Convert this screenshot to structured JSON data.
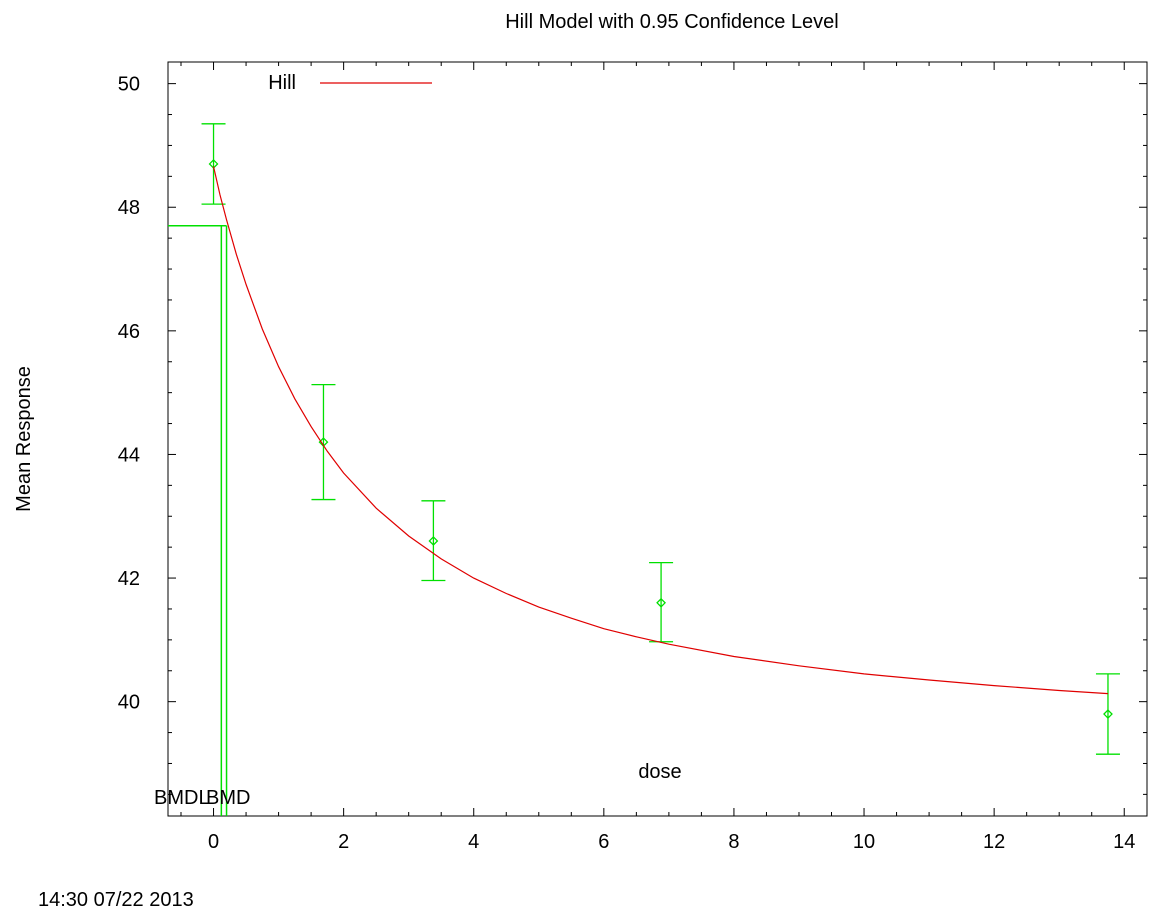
{
  "chart_data": {
    "type": "line",
    "title": "Hill Model with 0.95 Confidence Level",
    "xlabel": "dose",
    "ylabel": "Mean Response",
    "xlim": [
      -0.7,
      14.35
    ],
    "ylim": [
      38.15,
      50.35
    ],
    "x_ticks": [
      0,
      2,
      4,
      6,
      8,
      10,
      12,
      14
    ],
    "y_ticks": [
      40,
      42,
      44,
      46,
      48,
      50
    ],
    "grid": false,
    "legend": {
      "position": "top-left",
      "entries": [
        {
          "label": "Hill",
          "color": "#e00000"
        }
      ]
    },
    "series": [
      {
        "name": "Hill",
        "kind": "fitted-curve",
        "color": "#e00000",
        "x": [
          0,
          0.1,
          0.2,
          0.35,
          0.5,
          0.75,
          1.0,
          1.25,
          1.5,
          1.75,
          2.0,
          2.5,
          3.0,
          3.5,
          4.0,
          4.5,
          5.0,
          5.5,
          6.0,
          6.5,
          7.0,
          8.0,
          9.0,
          10.0,
          11.0,
          12.0,
          13.0,
          13.75
        ],
        "y": [
          48.66,
          48.2,
          47.8,
          47.24,
          46.75,
          46.03,
          45.42,
          44.9,
          44.45,
          44.05,
          43.7,
          43.13,
          42.68,
          42.31,
          42.0,
          41.75,
          41.53,
          41.35,
          41.18,
          41.05,
          40.93,
          40.73,
          40.58,
          40.45,
          40.35,
          40.26,
          40.18,
          40.13
        ]
      },
      {
        "name": "",
        "kind": "observed-means",
        "color": "#00e000",
        "x": [
          0,
          1.69,
          3.38,
          6.88,
          13.75
        ],
        "y": [
          48.7,
          44.2,
          42.6,
          41.6,
          39.8
        ],
        "lower": [
          48.05,
          43.27,
          41.96,
          40.97,
          39.15
        ],
        "upper": [
          49.35,
          45.13,
          43.25,
          42.25,
          40.45
        ]
      }
    ],
    "bmd": {
      "bmdl": 0.12,
      "bmd": 0.2,
      "response_level": 47.7,
      "bmdl_label": "BMDL",
      "bmd_label": "BMD",
      "color": "#00e000"
    },
    "timestamp": "14:30 07/22 2013"
  }
}
